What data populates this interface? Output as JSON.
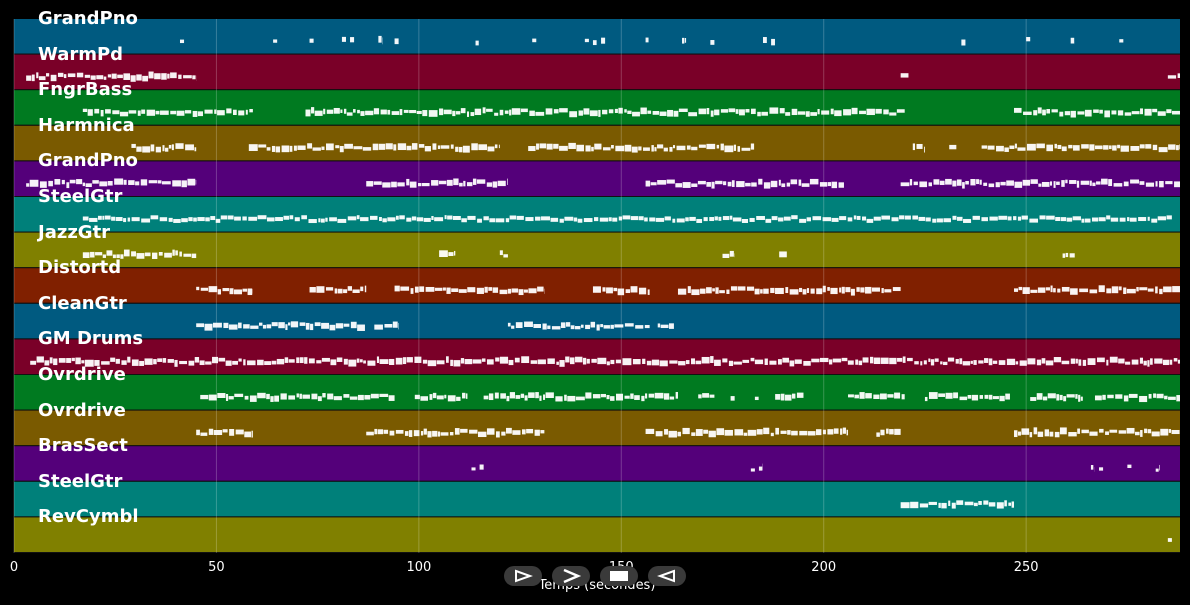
{
  "chart_data": {
    "type": "piano-roll",
    "title": "",
    "xlabel": "Temps (secondes)",
    "xlim": [
      0,
      288
    ],
    "xticks": [
      0,
      50,
      100,
      150,
      200,
      250
    ],
    "grid": true,
    "tracks": [
      {
        "name": "GrandPno",
        "color": "#005a80",
        "notes": [
          [
            41,
            42
          ],
          [
            64,
            65
          ],
          [
            73,
            74
          ],
          [
            81,
            82
          ],
          [
            83,
            84
          ],
          [
            90,
            91
          ],
          [
            94,
            95
          ],
          [
            114,
            115
          ],
          [
            128,
            129
          ],
          [
            141,
            142
          ],
          [
            143,
            144
          ],
          [
            145,
            146
          ],
          [
            156,
            157
          ],
          [
            165,
            166
          ],
          [
            172,
            173
          ],
          [
            185,
            186
          ],
          [
            187,
            188
          ],
          [
            234,
            235
          ],
          [
            250,
            251
          ],
          [
            261,
            262
          ],
          [
            273,
            274
          ]
        ]
      },
      {
        "name": "WarmPd",
        "color": "#7a0028",
        "notes": [
          [
            3,
            45
          ],
          [
            219,
            221
          ],
          [
            285,
            288
          ]
        ]
      },
      {
        "name": "FngrBass",
        "color": "#007a20",
        "notes": [
          [
            17,
            59
          ],
          [
            72,
            220
          ],
          [
            247,
            288
          ]
        ]
      },
      {
        "name": "Harmnica",
        "color": "#7a5a00",
        "notes": [
          [
            29,
            45
          ],
          [
            58,
            120
          ],
          [
            127,
            183
          ],
          [
            222,
            225
          ],
          [
            231,
            233
          ],
          [
            239,
            288
          ]
        ]
      },
      {
        "name": "GrandPno",
        "color": "#54007a",
        "notes": [
          [
            3,
            45
          ],
          [
            87,
            122
          ],
          [
            156,
            205
          ],
          [
            219,
            288
          ]
        ]
      },
      {
        "name": "SteelGtr",
        "color": "#00807a",
        "notes": [
          [
            17,
            286
          ]
        ]
      },
      {
        "name": "JazzGtr",
        "color": "#808000",
        "notes": [
          [
            17,
            45
          ],
          [
            105,
            109
          ],
          [
            120,
            122
          ],
          [
            175,
            178
          ],
          [
            189,
            191
          ],
          [
            259,
            262
          ]
        ]
      },
      {
        "name": "Distortd",
        "color": "#802000",
        "notes": [
          [
            45,
            59
          ],
          [
            73,
            87
          ],
          [
            94,
            131
          ],
          [
            143,
            157
          ],
          [
            164,
            219
          ],
          [
            247,
            288
          ]
        ]
      },
      {
        "name": "CleanGtr",
        "color": "#005a80",
        "notes": [
          [
            45,
            87
          ],
          [
            89,
            95
          ],
          [
            122,
            157
          ],
          [
            159,
            163
          ]
        ]
      },
      {
        "name": "GM Drums",
        "color": "#7a0028",
        "notes": [
          [
            4,
            288
          ]
        ]
      },
      {
        "name": "Ovrdrive",
        "color": "#007a20",
        "notes": [
          [
            46,
            94
          ],
          [
            99,
            112
          ],
          [
            116,
            164
          ],
          [
            169,
            173
          ],
          [
            177,
            178
          ],
          [
            183,
            184
          ],
          [
            188,
            195
          ],
          [
            206,
            220
          ],
          [
            225,
            246
          ],
          [
            251,
            264
          ],
          [
            267,
            288
          ]
        ]
      },
      {
        "name": "Ovrdrive",
        "color": "#7a5a00",
        "notes": [
          [
            45,
            59
          ],
          [
            87,
            131
          ],
          [
            156,
            206
          ],
          [
            213,
            219
          ],
          [
            247,
            288
          ]
        ]
      },
      {
        "name": "BrasSect",
        "color": "#54007a",
        "notes": [
          [
            113,
            114
          ],
          [
            115,
            116
          ],
          [
            182,
            183
          ],
          [
            184,
            185
          ],
          [
            266,
            267
          ],
          [
            268,
            269
          ],
          [
            275,
            276
          ],
          [
            282,
            283
          ]
        ]
      },
      {
        "name": "SteelGtr",
        "color": "#00807a",
        "notes": [
          [
            219,
            247
          ]
        ]
      },
      {
        "name": "RevCymbl",
        "color": "#808000",
        "notes": [
          [
            285,
            286
          ]
        ]
      }
    ]
  },
  "toolbar": {
    "play_label": "play",
    "forward_label": "forward",
    "stop_label": "stop",
    "back_label": "back"
  }
}
